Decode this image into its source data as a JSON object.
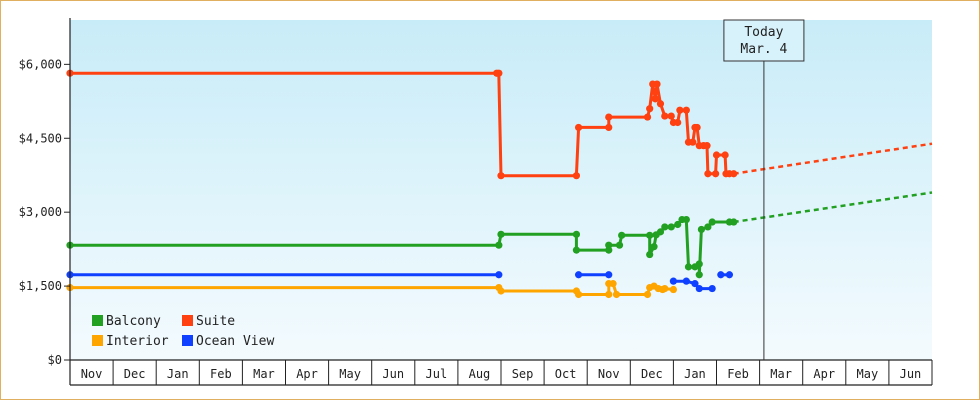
{
  "chart_data": {
    "type": "line",
    "title": "",
    "xlabel": "",
    "ylabel": "",
    "ylim": [
      0,
      6900
    ],
    "yticks": [
      {
        "value": 0,
        "label": "$0"
      },
      {
        "value": 1500,
        "label": "$1,500"
      },
      {
        "value": 3000,
        "label": "$3,000"
      },
      {
        "value": 4500,
        "label": "$4,500"
      },
      {
        "value": 6000,
        "label": "$6,000"
      }
    ],
    "months": [
      "Nov",
      "Dec",
      "Jan",
      "Feb",
      "Mar",
      "Apr",
      "May",
      "Jun",
      "Jul",
      "Aug",
      "Sep",
      "Oct",
      "Nov",
      "Dec",
      "Jan",
      "Feb",
      "Mar",
      "Apr",
      "May",
      "Jun"
    ],
    "x_unit": "months since start of November",
    "today": {
      "line1": "Today",
      "line2": "Mar. 4",
      "x": 16.1
    },
    "legend": [
      {
        "name": "Balcony",
        "color": "#22a022"
      },
      {
        "name": "Suite",
        "color": "#ff4010"
      },
      {
        "name": "Interior",
        "color": "#ffa500"
      },
      {
        "name": "Ocean View",
        "color": "#1040ff"
      }
    ],
    "series": [
      {
        "name": "Suite",
        "color": "#ff4010",
        "points": [
          [
            0,
            5820
          ],
          [
            9.9,
            5820
          ],
          [
            9.95,
            5820
          ],
          [
            10.0,
            3740
          ],
          [
            11.75,
            3740
          ],
          [
            11.8,
            4720
          ],
          [
            12.5,
            4720
          ],
          [
            12.5,
            4930
          ],
          [
            13.4,
            4930
          ],
          [
            13.45,
            5100
          ],
          [
            13.52,
            5600
          ],
          [
            13.58,
            5300
          ],
          [
            13.62,
            5600
          ],
          [
            13.7,
            5200
          ],
          [
            13.8,
            4950
          ],
          [
            13.95,
            4950
          ],
          [
            14.0,
            4820
          ],
          [
            14.1,
            4820
          ],
          [
            14.15,
            5070
          ],
          [
            14.3,
            5070
          ],
          [
            14.35,
            4420
          ],
          [
            14.45,
            4420
          ],
          [
            14.5,
            4720
          ],
          [
            14.55,
            4720
          ],
          [
            14.6,
            4350
          ],
          [
            14.7,
            4350
          ],
          [
            14.78,
            4350
          ],
          [
            14.8,
            3780
          ],
          [
            14.98,
            3780
          ],
          [
            15.0,
            4160
          ],
          [
            15.2,
            4160
          ],
          [
            15.22,
            3780
          ],
          [
            15.3,
            3780
          ],
          [
            15.4,
            3780
          ]
        ],
        "projection": [
          [
            15.4,
            3780
          ],
          [
            20.0,
            4390
          ]
        ]
      },
      {
        "name": "Balcony",
        "color": "#22a022",
        "points": [
          [
            0,
            2330
          ],
          [
            9.95,
            2330
          ],
          [
            10.0,
            2550
          ],
          [
            11.75,
            2550
          ],
          [
            11.75,
            2230
          ],
          [
            12.5,
            2230
          ],
          [
            12.5,
            2330
          ],
          [
            12.75,
            2330
          ],
          [
            12.8,
            2530
          ],
          [
            13.45,
            2530
          ],
          [
            13.45,
            2140
          ],
          [
            13.55,
            2300
          ],
          [
            13.6,
            2540
          ],
          [
            13.7,
            2600
          ],
          [
            13.8,
            2700
          ],
          [
            13.95,
            2700
          ],
          [
            14.1,
            2750
          ],
          [
            14.2,
            2850
          ],
          [
            14.3,
            2850
          ],
          [
            14.35,
            1890
          ],
          [
            14.5,
            1890
          ],
          [
            14.6,
            1950
          ],
          [
            14.6,
            1730
          ],
          [
            14.65,
            2650
          ],
          [
            14.8,
            2700
          ],
          [
            14.9,
            2800
          ],
          [
            15.3,
            2800
          ],
          [
            15.4,
            2800
          ]
        ],
        "projection": [
          [
            15.4,
            2800
          ],
          [
            20.0,
            3400
          ]
        ]
      },
      {
        "name": "Interior",
        "color": "#ffa500",
        "points": [
          [
            0,
            1470
          ],
          [
            9.95,
            1470
          ],
          [
            10.0,
            1400
          ],
          [
            11.75,
            1400
          ],
          [
            11.8,
            1330
          ],
          [
            12.5,
            1330
          ],
          [
            12.5,
            1550
          ],
          [
            12.6,
            1550
          ],
          [
            12.68,
            1330
          ],
          [
            13.4,
            1330
          ],
          [
            13.45,
            1470
          ],
          [
            13.55,
            1500
          ],
          [
            13.65,
            1450
          ],
          [
            13.75,
            1430
          ],
          [
            13.8,
            1450
          ],
          [
            14.0,
            1430
          ]
        ]
      },
      {
        "name": "Ocean View",
        "color": "#1040ff",
        "points": [
          [
            0,
            1730
          ],
          [
            9.95,
            1730
          ]
        ],
        "segments": [
          [
            [
              11.8,
              1730
            ],
            [
              12.5,
              1730
            ]
          ],
          [
            [
              14.0,
              1600
            ],
            [
              14.3,
              1600
            ],
            [
              14.5,
              1550
            ],
            [
              14.6,
              1450
            ],
            [
              14.9,
              1450
            ]
          ],
          [
            [
              15.1,
              1730
            ],
            [
              15.3,
              1730
            ]
          ]
        ]
      }
    ]
  }
}
